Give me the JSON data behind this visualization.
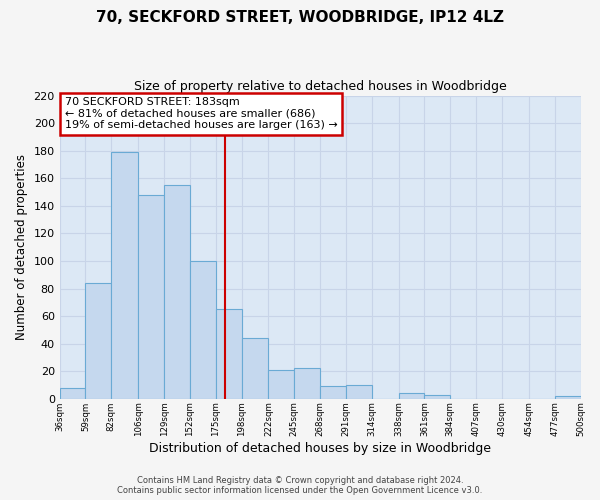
{
  "title": "70, SECKFORD STREET, WOODBRIDGE, IP12 4LZ",
  "subtitle": "Size of property relative to detached houses in Woodbridge",
  "xlabel": "Distribution of detached houses by size in Woodbridge",
  "ylabel": "Number of detached properties",
  "bin_labels": [
    "36sqm",
    "59sqm",
    "82sqm",
    "106sqm",
    "129sqm",
    "152sqm",
    "175sqm",
    "198sqm",
    "222sqm",
    "245sqm",
    "268sqm",
    "291sqm",
    "314sqm",
    "338sqm",
    "361sqm",
    "384sqm",
    "407sqm",
    "430sqm",
    "454sqm",
    "477sqm",
    "500sqm"
  ],
  "bar_values": [
    8,
    84,
    179,
    148,
    155,
    100,
    65,
    44,
    21,
    22,
    9,
    10,
    0,
    4,
    3,
    0,
    0,
    0,
    0,
    2
  ],
  "bar_color": "#c5d8ee",
  "bar_edge_color": "#6aaad4",
  "reference_line_color": "#cc0000",
  "bin_edges": [
    36,
    59,
    82,
    106,
    129,
    152,
    175,
    198,
    222,
    245,
    268,
    291,
    314,
    338,
    361,
    384,
    407,
    430,
    454,
    477,
    500
  ],
  "ylim": [
    0,
    220
  ],
  "yticks": [
    0,
    20,
    40,
    60,
    80,
    100,
    120,
    140,
    160,
    180,
    200,
    220
  ],
  "annotation_title": "70 SECKFORD STREET: 183sqm",
  "annotation_line1": "← 81% of detached houses are smaller (686)",
  "annotation_line2": "19% of semi-detached houses are larger (163) →",
  "annotation_box_color": "#ffffff",
  "annotation_box_edge": "#cc0000",
  "grid_color": "#c8d4e8",
  "background_color": "#dce8f5",
  "fig_background": "#f5f5f5",
  "footer_line1": "Contains HM Land Registry data © Crown copyright and database right 2024.",
  "footer_line2": "Contains public sector information licensed under the Open Government Licence v3.0."
}
